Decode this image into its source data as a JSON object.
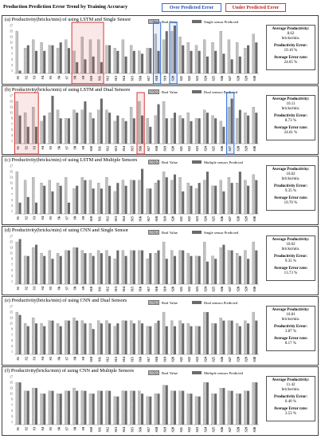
{
  "page": {
    "title": "Production Prediction Error Trend by Training Accuracy",
    "over_label": "Over Predicted Error",
    "under_label": "Under Predicted Error",
    "real_label": "Real Value"
  },
  "colors": {
    "over": "#2f6fd6",
    "under": "#d23a3a",
    "predicted": "#6b6b6b",
    "real": "#c9c9c9"
  },
  "chart_data": [
    {
      "type": "bar",
      "title": "(a) Productivity(bricks/min) of using LSTM and Single Sensor",
      "legend": [
        "Real Value",
        "Single sensor Predicted"
      ],
      "ylim": [
        0,
        17
      ],
      "yticks": [
        1,
        3,
        5,
        7,
        9,
        11,
        13,
        15,
        17
      ],
      "categories": [
        "S1",
        "S2",
        "S3",
        "S4",
        "S5",
        "S6",
        "S7",
        "S8",
        "S9",
        "S10",
        "S11",
        "S12",
        "S13",
        "S14",
        "S15",
        "S16",
        "S17",
        "S18",
        "S19",
        "S20",
        "S21",
        "S22",
        "S23",
        "S24",
        "S25",
        "S26",
        "S27",
        "S28",
        "S29",
        "S30"
      ],
      "series": [
        {
          "name": "Real Value",
          "values": [
            15,
            9,
            12,
            11,
            10,
            9,
            12,
            8,
            13,
            12,
            12,
            10,
            9,
            12,
            10,
            8,
            9,
            14,
            12,
            15,
            13,
            11,
            10,
            12,
            11,
            15,
            12,
            11,
            9,
            14
          ]
        },
        {
          "name": "Single sensor Predicted",
          "values": [
            1,
            10,
            8,
            8,
            10,
            11,
            9,
            4,
            5,
            6,
            4,
            10,
            8,
            6,
            8,
            7,
            9,
            8,
            15,
            17,
            10,
            8,
            8,
            6,
            8,
            7,
            5,
            6,
            10,
            11
          ]
        }
      ],
      "highlights": [
        {
          "type": "under",
          "from": 8,
          "to": 11
        },
        {
          "type": "over",
          "from": 18,
          "to": 18
        },
        {
          "type": "over",
          "from": 20,
          "to": 20
        }
      ],
      "stats": {
        "productivity_label": "Average Productivity:",
        "productivity": "8.62",
        "unit": "bricks/min.",
        "prod_error_label": "Productivity Error:",
        "prod_error": "19.10 %",
        "error_rate_label": "Average Error rate:",
        "error_rate": "24.65 %"
      }
    },
    {
      "type": "bar",
      "title": "(b) Productivity(bricks/min) of using LSTM and Dual Sensors",
      "legend": [
        "Real Value",
        "Dual sensors Predicted"
      ],
      "ylim": [
        0,
        17
      ],
      "yticks": [
        1,
        3,
        5,
        7,
        9,
        11,
        13,
        15,
        17
      ],
      "categories": [
        "S1",
        "S2",
        "S3",
        "S4",
        "S5",
        "S6",
        "S7",
        "S8",
        "S9",
        "S10",
        "S11",
        "S12",
        "S13",
        "S14",
        "S15",
        "S16",
        "S17",
        "S18",
        "S19",
        "S20",
        "S21",
        "S22",
        "S23",
        "S24",
        "S25",
        "S26",
        "S27",
        "S28",
        "S29",
        "S30"
      ],
      "series": [
        {
          "name": "Real Value",
          "values": [
            15,
            11,
            13,
            8,
            11,
            12,
            9,
            12,
            12,
            11,
            12,
            12,
            8,
            9,
            13,
            15,
            9,
            10,
            15,
            9,
            10,
            11,
            9,
            12,
            10,
            8,
            13,
            9,
            11,
            13
          ]
        },
        {
          "name": "Dual sensors Predicted",
          "values": [
            10,
            6,
            6,
            10,
            17,
            9,
            9,
            11,
            15,
            9,
            16,
            11,
            10,
            8,
            9,
            10,
            6,
            14,
            9,
            11,
            9,
            8,
            9,
            11,
            9,
            6,
            16,
            12,
            10,
            11
          ]
        }
      ],
      "highlights": [
        {
          "type": "under",
          "from": 1,
          "to": 3
        },
        {
          "type": "under",
          "from": 16,
          "to": 16
        },
        {
          "type": "over",
          "from": 27,
          "to": 27
        }
      ],
      "stats": {
        "productivity_label": "Average Productivity:",
        "productivity": "10.11",
        "unit": "bricks/min.",
        "prod_error_label": "Productivity Error:",
        "prod_error": "8.73 %",
        "error_rate_label": "Average Error rate:",
        "error_rate": "24.61 %"
      }
    },
    {
      "type": "bar",
      "title": "(c) Productivity(bricks/min) of using LSTM and Multiple Sensors",
      "legend": [
        "Real Value",
        "Multiple sensors Predicted"
      ],
      "ylim": [
        0,
        17
      ],
      "yticks": [
        1,
        3,
        5,
        7,
        9,
        11,
        13,
        15,
        17
      ],
      "categories": [
        "S1",
        "S2",
        "S3",
        "S4",
        "S5",
        "S6",
        "S7",
        "S8",
        "S9",
        "S10",
        "S11",
        "S12",
        "S13",
        "S14",
        "S15",
        "S16",
        "S17",
        "S18",
        "S19",
        "S20",
        "S21",
        "S22",
        "S23",
        "S24",
        "S25",
        "S26",
        "S27",
        "S28",
        "S29",
        "S30"
      ],
      "series": [
        {
          "name": "Real Value",
          "values": [
            15,
            12,
            13,
            11,
            12,
            11,
            13,
            9,
            13,
            12,
            11,
            13,
            8,
            12,
            12,
            12,
            9,
            11,
            15,
            12,
            13,
            11,
            9,
            12,
            10,
            12,
            13,
            11,
            12,
            14
          ]
        },
        {
          "name": "Multiple sensors Predicted",
          "values": [
            4,
            6,
            4,
            10,
            8,
            10,
            4,
            10,
            12,
            9,
            9,
            10,
            11,
            10,
            12,
            16,
            9,
            12,
            13,
            14,
            8,
            10,
            11,
            15,
            10,
            8,
            11,
            15,
            10,
            12
          ]
        }
      ],
      "highlights": [],
      "stats": {
        "productivity_label": "Average Productivity:",
        "productivity": "10.02",
        "unit": "bricks/min.",
        "prod_error_label": "Productivity Error:",
        "prod_error": "9.35 %",
        "error_rate_label": "Average Error rate:",
        "error_rate": "19.70 %"
      }
    },
    {
      "type": "bar",
      "title": "(d) Productivity(bricks/min) of using CNN and Single Sensor",
      "legend": [
        "Real Value",
        "Single sensor Predicted"
      ],
      "ylim": [
        0,
        17
      ],
      "yticks": [
        1,
        3,
        5,
        7,
        9,
        11,
        13,
        15,
        17
      ],
      "categories": [
        "S1",
        "S2",
        "S3",
        "S4",
        "S5",
        "S6",
        "S7",
        "S8",
        "S9",
        "S10",
        "S11",
        "S12",
        "S13",
        "S14",
        "S15",
        "S16",
        "S17",
        "S18",
        "S19",
        "S20",
        "S21",
        "S22",
        "S23",
        "S24",
        "S25",
        "S26",
        "S27",
        "S28",
        "S29",
        "S30"
      ],
      "series": [
        {
          "name": "Real Value",
          "values": [
            15,
            10,
            13,
            11,
            12,
            11,
            12,
            13,
            12,
            11,
            12,
            12,
            9,
            12,
            12,
            12,
            9,
            11,
            15,
            12,
            12,
            11,
            10,
            15,
            10,
            13,
            12,
            11,
            12,
            15
          ]
        },
        {
          "name": "Single sensor Predicted",
          "values": [
            16,
            10,
            14,
            10,
            9,
            10,
            12,
            13,
            11,
            10,
            11,
            10,
            12,
            10,
            12,
            12,
            11,
            12,
            9,
            10,
            12,
            10,
            10,
            8,
            9,
            14,
            12,
            10,
            9,
            12
          ]
        }
      ],
      "highlights": [],
      "stats": {
        "productivity_label": "Average Productivity:",
        "productivity": "10.02",
        "unit": "bricks/min.",
        "prod_error_label": "Productivity Error:",
        "prod_error": "9.35 %",
        "error_rate_label": "Average Error rate:",
        "error_rate": "13.73 %"
      }
    },
    {
      "type": "bar",
      "title": "(e) Productivity(bricks/min) of using CNN and Dual Sensors",
      "legend": [
        "Real Value",
        "Dual sensors Predicted"
      ],
      "ylim": [
        0,
        17
      ],
      "yticks": [
        1,
        3,
        5,
        7,
        9,
        11,
        13,
        15,
        17
      ],
      "categories": [
        "S1",
        "S2",
        "S3",
        "S4",
        "S5",
        "S6",
        "S7",
        "S8",
        "S9",
        "S10",
        "S11",
        "S12",
        "S13",
        "S14",
        "S15",
        "S16",
        "S17",
        "S18",
        "S19",
        "S20",
        "S21",
        "S22",
        "S23",
        "S24",
        "S25",
        "S26",
        "S27",
        "S28",
        "S29",
        "S30"
      ],
      "series": [
        {
          "name": "Real Value",
          "values": [
            15,
            11,
            13,
            11,
            12,
            11,
            12,
            13,
            12,
            11,
            12,
            12,
            10,
            12,
            12,
            12,
            10,
            11,
            15,
            12,
            12,
            11,
            10,
            15,
            11,
            13,
            12,
            11,
            12,
            15
          ]
        },
        {
          "name": "Dual sensors Predicted",
          "values": [
            14,
            10,
            11,
            10,
            12,
            10,
            12,
            12,
            11,
            9,
            11,
            11,
            11,
            12,
            11,
            11,
            10,
            12,
            10,
            10,
            11,
            10,
            10,
            15,
            11,
            12,
            12,
            10,
            11,
            12
          ]
        }
      ],
      "highlights": [],
      "stats": {
        "productivity_label": "Average Productivity:",
        "productivity": "10.81",
        "unit": "bricks/min.",
        "prod_error_label": "Productivity Error:",
        "prod_error": "3.87 %",
        "error_rate_label": "Average Error rate:",
        "error_rate": "8.17 %"
      }
    },
    {
      "type": "bar",
      "title": "(f) Productivity(bricks/min) of using CNN and Multiple Sensors",
      "legend": [
        "Real Value",
        "Multiple sensors Predicted"
      ],
      "ylim": [
        0,
        17
      ],
      "yticks": [
        1,
        3,
        5,
        7,
        9,
        11,
        13,
        15,
        17
      ],
      "categories": [
        "S1",
        "S2",
        "S3",
        "S4",
        "S5",
        "S6",
        "S7",
        "S8",
        "S9",
        "S10",
        "S11",
        "S12",
        "S13",
        "S14",
        "S15",
        "S16",
        "S17",
        "S18",
        "S19",
        "S20",
        "S21",
        "S22",
        "S23",
        "S24",
        "S25",
        "S26",
        "S27",
        "S28",
        "S29",
        "S30"
      ],
      "series": [
        {
          "name": "Real Value",
          "values": [
            15,
            12,
            13,
            11,
            12,
            11,
            12,
            13,
            12,
            11,
            12,
            12,
            10,
            12,
            12,
            12,
            10,
            11,
            14,
            12,
            12,
            11,
            10,
            15,
            11,
            13,
            12,
            11,
            12,
            15
          ]
        },
        {
          "name": "Multiple sensors Predicted",
          "values": [
            15,
            12,
            13,
            11,
            12,
            11,
            12,
            12,
            12,
            11,
            12,
            12,
            10,
            12,
            12,
            11,
            10,
            11,
            14,
            12,
            12,
            11,
            10,
            15,
            11,
            13,
            12,
            11,
            12,
            15
          ]
        }
      ],
      "highlights": [],
      "stats": {
        "productivity_label": "Average Productivity:",
        "productivity": "11.42",
        "unit": "bricks/min.",
        "prod_error_label": "Productivity Error:",
        "prod_error": "0.40 %",
        "error_rate_label": "Average Error rate:",
        "error_rate": "3.53 %"
      }
    }
  ]
}
